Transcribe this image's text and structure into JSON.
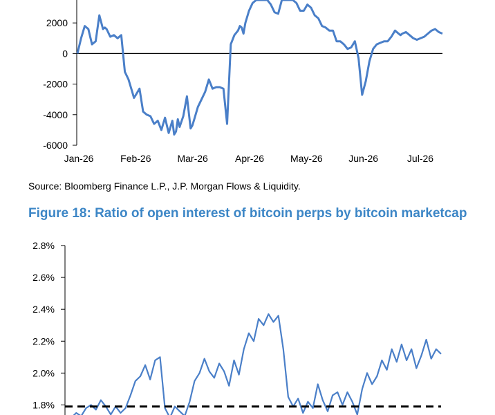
{
  "source": "Source: Bloomberg Finance L.P., J.P. Morgan Flows & Liquidity.",
  "figure_title": "Figure 18: Ratio of open interest of bitcoin perps by bitcoin marketcap",
  "colors": {
    "line": "#4a7fc8",
    "axis": "#000000",
    "title": "#3c86c6",
    "threshold": "#000000"
  },
  "chart_data": [
    {
      "type": "line",
      "title": "",
      "xlabel": "",
      "ylabel": "",
      "x_ticks": [
        "Jan-26",
        "Feb-26",
        "Mar-26",
        "Apr-26",
        "May-26",
        "Jun-26",
        "Jul-26"
      ],
      "y_ticks": [
        "-6000",
        "-4000",
        "-2000",
        "0",
        "2000"
      ],
      "ylim": [
        -6000,
        3500
      ],
      "series": [
        {
          "name": "",
          "x": [
            0,
            2,
            4,
            6,
            8,
            10,
            12,
            14,
            15,
            16,
            18,
            20,
            22,
            24,
            26,
            28,
            30,
            31,
            32,
            34,
            36,
            38,
            40,
            42,
            44,
            46,
            48,
            50,
            52,
            53,
            54,
            55,
            56,
            58,
            60,
            62,
            63,
            64,
            66,
            68,
            70,
            72,
            74,
            76,
            78,
            80,
            82,
            84,
            86,
            88,
            89,
            90,
            91,
            92,
            94,
            96,
            98,
            100,
            102,
            104,
            106,
            108,
            110,
            112,
            114,
            116,
            118,
            120,
            122,
            124,
            126,
            128,
            130,
            132,
            134,
            136,
            138,
            140,
            142,
            144,
            146,
            148,
            150,
            152,
            154,
            156,
            158,
            160,
            162,
            164,
            166,
            168,
            170,
            172,
            174,
            176,
            177,
            178,
            180,
            182,
            184,
            186,
            188,
            190,
            192,
            194,
            196,
            198,
            200
          ],
          "values": [
            0,
            1000,
            1800,
            1600,
            600,
            800,
            2500,
            1600,
            1700,
            1600,
            1100,
            1200,
            1000,
            1200,
            -1200,
            -1700,
            -2500,
            -2900,
            -2700,
            -2300,
            -3800,
            -4000,
            -4100,
            -4600,
            -4400,
            -5000,
            -4200,
            -5200,
            -4400,
            -5300,
            -5100,
            -4300,
            -4800,
            -4100,
            -2800,
            -4900,
            -4700,
            -4300,
            -3500,
            -3000,
            -2500,
            -1700,
            -2300,
            -2200,
            -2200,
            -2300,
            -4600,
            600,
            1200,
            1500,
            1800,
            1700,
            1300,
            2000,
            2800,
            3300,
            3500,
            3500,
            3500,
            3500,
            3200,
            2700,
            2600,
            3500,
            3500,
            3500,
            3500,
            3300,
            2800,
            2800,
            3200,
            3000,
            2500,
            2300,
            1800,
            1700,
            1500,
            1500,
            800,
            800,
            600,
            300,
            400,
            800,
            -300,
            -2700,
            -1800,
            -500,
            300,
            600,
            700,
            800,
            800,
            1100,
            1500,
            1300,
            1200,
            1300,
            1400,
            1200,
            1000,
            900,
            1000,
            1100,
            1300,
            1500,
            1600,
            1400,
            1300
          ]
        }
      ]
    },
    {
      "type": "line",
      "title": "Figure 18: Ratio of open interest of bitcoin perps by bitcoin marketcap",
      "xlabel": "",
      "ylabel": "",
      "y_ticks": [
        "1.8%",
        "2.0%",
        "2.2%",
        "2.4%",
        "2.6%",
        "2.8%"
      ],
      "ylim": [
        1.65,
        2.8
      ],
      "threshold": 1.79,
      "series": [
        {
          "name": "",
          "x": [
            0,
            8,
            16,
            24,
            32,
            40,
            48,
            56,
            64,
            72,
            80,
            88,
            96,
            104,
            112,
            120,
            128,
            136,
            144,
            152,
            160,
            168,
            176,
            184,
            192,
            200,
            208,
            216,
            224,
            232,
            240,
            248,
            256,
            264,
            272,
            280,
            288,
            296,
            304,
            312,
            320,
            328,
            336,
            344,
            352,
            360,
            368,
            376,
            384,
            392,
            400,
            408,
            416,
            424,
            432,
            440,
            448,
            456,
            464,
            472,
            480,
            488,
            496,
            504,
            512,
            520,
            528,
            536,
            544,
            552,
            560,
            568,
            576,
            584,
            592,
            600,
            608
          ],
          "values": [
            1.71,
            1.72,
            1.75,
            1.73,
            1.78,
            1.8,
            1.77,
            1.83,
            1.79,
            1.74,
            1.79,
            1.75,
            1.78,
            1.86,
            1.95,
            1.98,
            2.05,
            1.96,
            2.08,
            2.1,
            1.78,
            1.72,
            1.79,
            1.76,
            1.73,
            1.82,
            1.95,
            2.0,
            2.09,
            2.01,
            1.97,
            2.06,
            2.01,
            1.92,
            2.08,
            1.99,
            2.15,
            2.25,
            2.2,
            2.34,
            2.3,
            2.37,
            2.32,
            2.36,
            2.15,
            1.85,
            1.79,
            1.84,
            1.75,
            1.82,
            1.78,
            1.93,
            1.83,
            1.76,
            1.86,
            1.88,
            1.8,
            1.88,
            1.82,
            1.74,
            1.9,
            2.0,
            1.93,
            1.98,
            2.08,
            2.02,
            2.15,
            2.07,
            2.18,
            2.08,
            2.15,
            2.03,
            2.11,
            2.21,
            2.09,
            2.15,
            2.12
          ]
        }
      ]
    }
  ]
}
